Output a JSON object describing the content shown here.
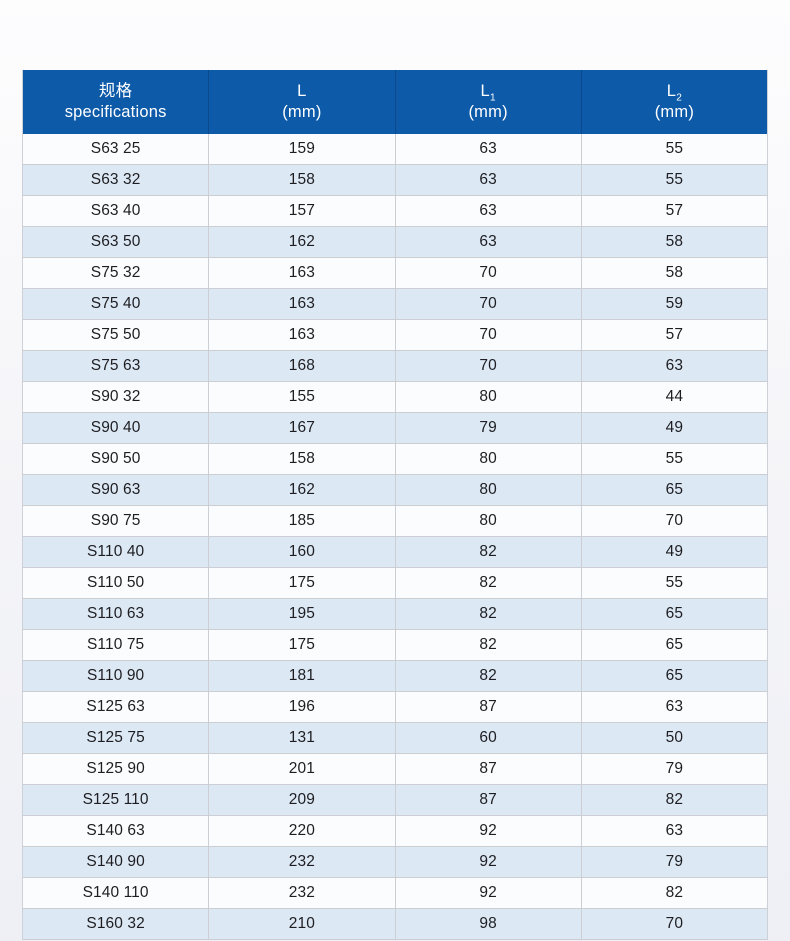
{
  "colors": {
    "header_background": "#0d5aa8",
    "header_text": "#ffffff",
    "header_divider": "#0a4a8c",
    "row_even_background": "#dce8f4",
    "row_odd_background": "#fbfcfe",
    "row_border": "#ccced4",
    "body_text": "#1e1e22",
    "page_background": "#f4f4f8"
  },
  "table": {
    "columns": [
      {
        "title": "规格",
        "sub": "",
        "unit": "specifications"
      },
      {
        "title": "L",
        "sub": "",
        "unit": "(mm)"
      },
      {
        "title": "L",
        "sub": "1",
        "unit": "(mm)"
      },
      {
        "title": "L",
        "sub": "2",
        "unit": "(mm)"
      }
    ],
    "rows": [
      [
        "S63 25",
        "159",
        "63",
        "55"
      ],
      [
        "S63 32",
        "158",
        "63",
        "55"
      ],
      [
        "S63 40",
        "157",
        "63",
        "57"
      ],
      [
        "S63 50",
        "162",
        "63",
        "58"
      ],
      [
        "S75 32",
        "163",
        "70",
        "58"
      ],
      [
        "S75 40",
        "163",
        "70",
        "59"
      ],
      [
        "S75 50",
        "163",
        "70",
        "57"
      ],
      [
        "S75 63",
        "168",
        "70",
        "63"
      ],
      [
        "S90 32",
        "155",
        "80",
        "44"
      ],
      [
        "S90 40",
        "167",
        "79",
        "49"
      ],
      [
        "S90 50",
        "158",
        "80",
        "55"
      ],
      [
        "S90 63",
        "162",
        "80",
        "65"
      ],
      [
        "S90 75",
        "185",
        "80",
        "70"
      ],
      [
        "S110 40",
        "160",
        "82",
        "49"
      ],
      [
        "S110 50",
        "175",
        "82",
        "55"
      ],
      [
        "S110 63",
        "195",
        "82",
        "65"
      ],
      [
        "S110 75",
        "175",
        "82",
        "65"
      ],
      [
        "S110 90",
        "181",
        "82",
        "65"
      ],
      [
        "S125 63",
        "196",
        "87",
        "63"
      ],
      [
        "S125 75",
        "131",
        "60",
        "50"
      ],
      [
        "S125 90",
        "201",
        "87",
        "79"
      ],
      [
        "S125 110",
        "209",
        "87",
        "82"
      ],
      [
        "S140 63",
        "220",
        "92",
        "63"
      ],
      [
        "S140 90",
        "232",
        "92",
        "79"
      ],
      [
        "S140 110",
        "232",
        "92",
        "82"
      ],
      [
        "S160 32",
        "210",
        "98",
        "70"
      ]
    ]
  }
}
